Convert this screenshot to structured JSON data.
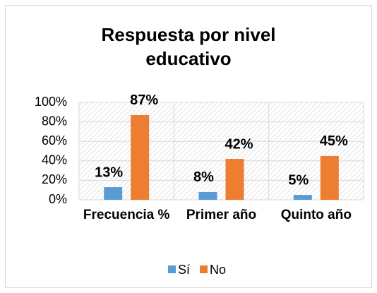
{
  "chart_data": {
    "type": "bar",
    "title": "Respuesta por nivel educativo",
    "categories": [
      "Frecuencia %",
      "Primer año",
      "Quinto año"
    ],
    "series": [
      {
        "name": "Sí",
        "color": "#5b9bd5",
        "values": [
          13,
          8,
          5
        ],
        "value_labels": [
          "13%",
          "8%",
          "5%"
        ]
      },
      {
        "name": "No",
        "color": "#ed7d31",
        "values": [
          87,
          42,
          45
        ],
        "value_labels": [
          "87%",
          "42%",
          "45%"
        ]
      }
    ],
    "ylim": [
      0,
      100
    ],
    "yticks": [
      {
        "value": 0,
        "label": "0%"
      },
      {
        "value": 20,
        "label": "20%"
      },
      {
        "value": 40,
        "label": "40%"
      },
      {
        "value": 60,
        "label": "60%"
      },
      {
        "value": 80,
        "label": "80%"
      },
      {
        "value": 100,
        "label": "100%"
      }
    ],
    "grid": true,
    "legend": "bottom"
  }
}
